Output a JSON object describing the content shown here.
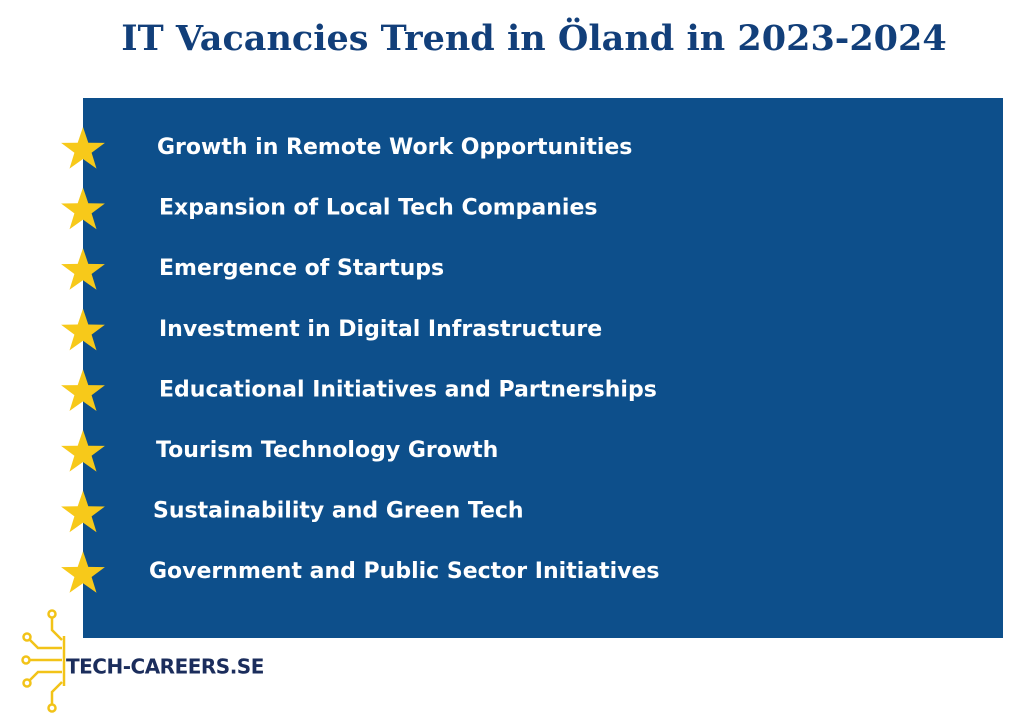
{
  "header": {
    "title": "IT Vacancies Trend in Öland in 2023-2024"
  },
  "items": [
    "Growth in Remote Work Opportunities",
    "Expansion of Local Tech Companies",
    "Emergence of Startups",
    "Investment in Digital Infrastructure",
    "Educational Initiatives and Partnerships",
    "Tourism Technology Growth",
    "Sustainability and Green Tech",
    "Government and Public Sector Initiatives"
  ],
  "footer": {
    "logo": "TECH-CAREERS.SE"
  }
}
